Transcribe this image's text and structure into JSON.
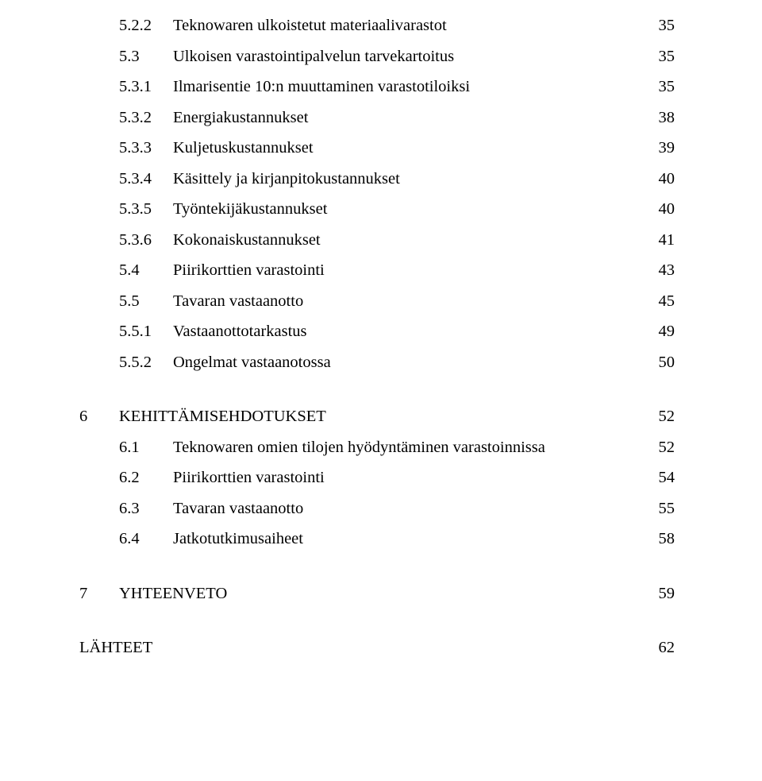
{
  "font_family": "Times New Roman",
  "font_size_pt": 15,
  "text_color": "#000000",
  "background_color": "#ffffff",
  "toc": [
    {
      "lvl": 3,
      "num": "5.2.2",
      "title": "Teknowaren ulkoistetut materiaalivarastot",
      "page": "35"
    },
    {
      "lvl": 2,
      "num": "5.3",
      "title": "Ulkoisen varastointipalvelun tarvekartoitus",
      "page": "35"
    },
    {
      "lvl": 3,
      "num": "5.3.1",
      "title": "Ilmarisentie 10:n muuttaminen varastotiloiksi",
      "page": "35"
    },
    {
      "lvl": 3,
      "num": "5.3.2",
      "title": "Energiakustannukset",
      "page": "38"
    },
    {
      "lvl": 3,
      "num": "5.3.3",
      "title": "Kuljetuskustannukset",
      "page": "39"
    },
    {
      "lvl": 3,
      "num": "5.3.4",
      "title": "Käsittely ja kirjanpitokustannukset",
      "page": "40"
    },
    {
      "lvl": 3,
      "num": "5.3.5",
      "title": "Työntekijäkustannukset",
      "page": "40"
    },
    {
      "lvl": 3,
      "num": "5.3.6",
      "title": "Kokonaiskustannukset",
      "page": "41"
    },
    {
      "lvl": 2,
      "num": "5.4",
      "title": "Piirikorttien varastointi",
      "page": "43"
    },
    {
      "lvl": 2,
      "num": "5.5",
      "title": "Tavaran vastaanotto",
      "page": "45"
    },
    {
      "lvl": 3,
      "num": "5.5.1",
      "title": "Vastaanottotarkastus",
      "page": "49"
    },
    {
      "lvl": 3,
      "num": "5.5.2",
      "title": "Ongelmat vastaanotossa",
      "page": "50"
    },
    {
      "gap": true
    },
    {
      "lvl": 1,
      "num": "6",
      "title": "KEHITTÄMISEHDOTUKSET",
      "page": "52"
    },
    {
      "lvl": 2,
      "num": "6.1",
      "title": "Teknowaren omien tilojen hyödyntäminen varastoinnissa",
      "page": "52"
    },
    {
      "lvl": 2,
      "num": "6.2",
      "title": "Piirikorttien varastointi",
      "page": "54"
    },
    {
      "lvl": 2,
      "num": "6.3",
      "title": "Tavaran vastaanotto",
      "page": "55"
    },
    {
      "lvl": 2,
      "num": "6.4",
      "title": "Jatkotutkimusaiheet",
      "page": "58"
    },
    {
      "gap": true
    },
    {
      "lvl": 1,
      "num": "7",
      "title": "YHTEENVETO",
      "page": "59"
    },
    {
      "gap": true
    },
    {
      "lvl": 0,
      "num": "",
      "title": "LÄHTEET",
      "page": "62"
    }
  ]
}
